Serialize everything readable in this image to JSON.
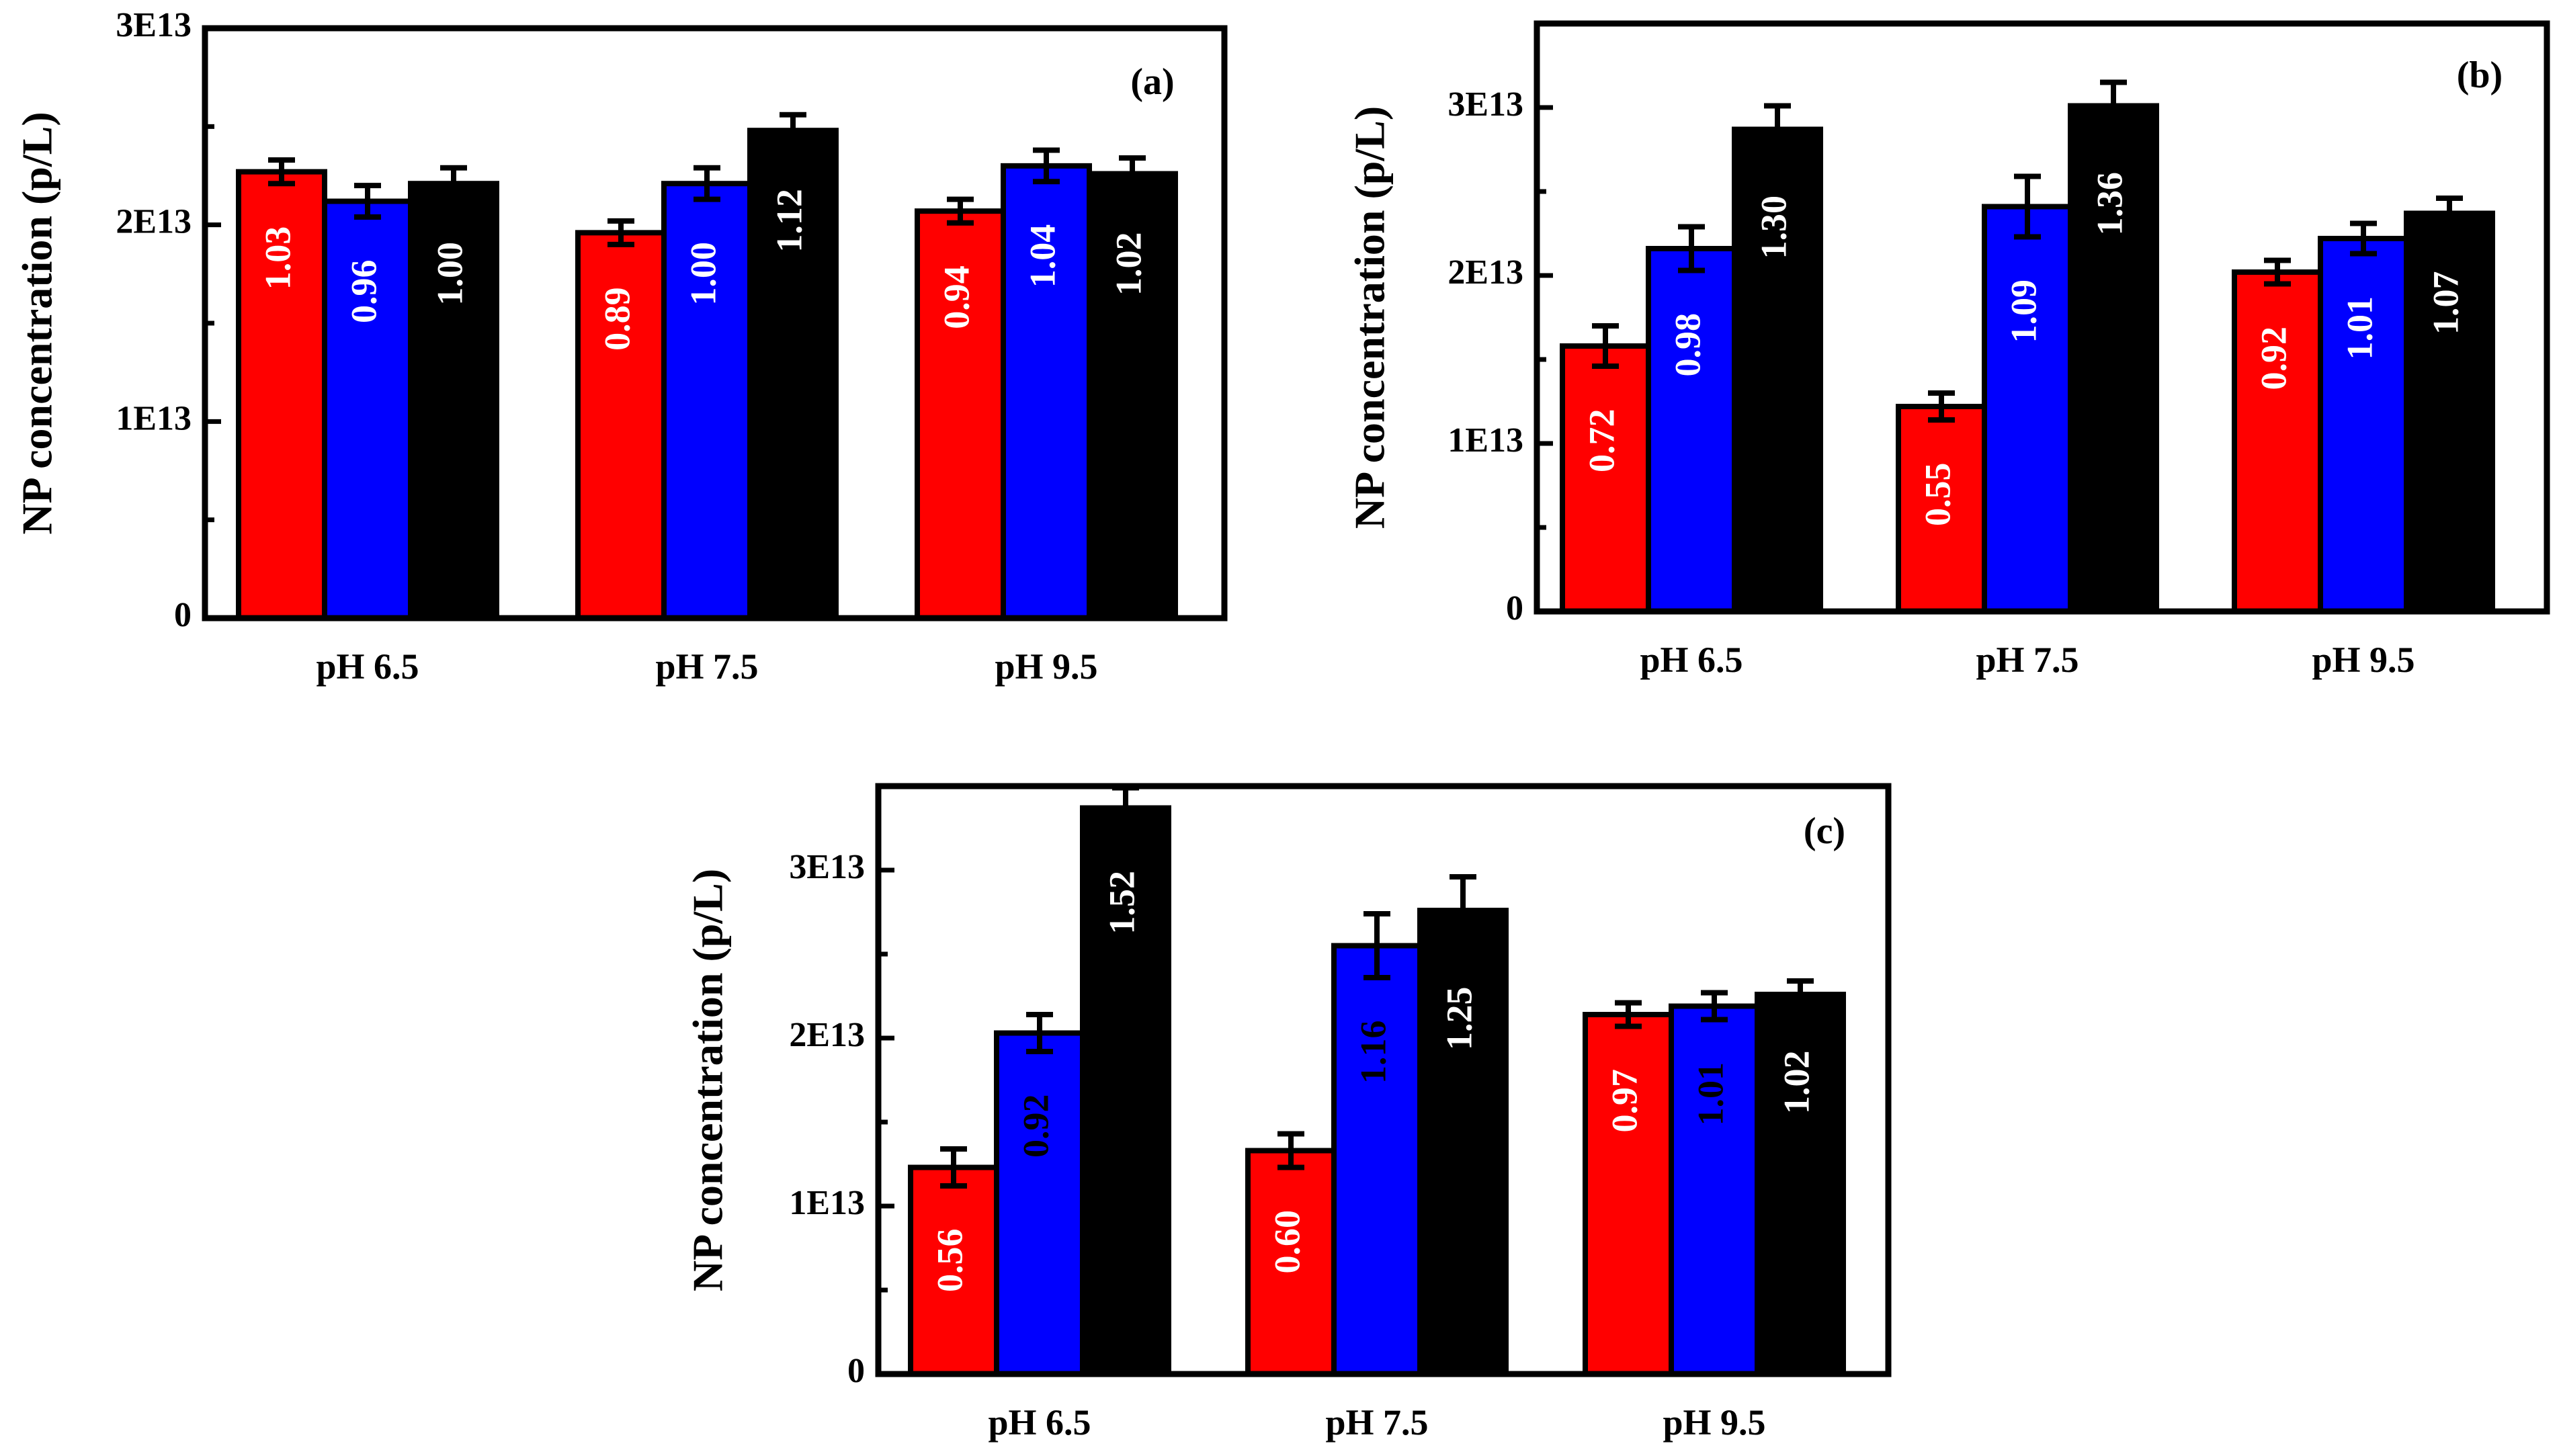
{
  "figure": {
    "colors": {
      "s1": "#ff0000",
      "s2": "#0000ff",
      "s3": "#000000",
      "axis": "#000000",
      "errorbar": "#000000"
    }
  },
  "chart_data": [
    {
      "type": "bar",
      "panel": "(a)",
      "ylabel": "NP concentration (p/L)",
      "xlabel": "",
      "categories": [
        "pH 6.5",
        "pH 7.5",
        "pH 9.5"
      ],
      "ylim": [
        0,
        30000000000000.0
      ],
      "yticks": [
        0,
        10000000000000.0,
        20000000000000.0,
        30000000000000.0
      ],
      "ytick_labels": [
        "0",
        "1E13",
        "2E13",
        "3E13"
      ],
      "series": [
        {
          "name": "red",
          "color": "#ff0000",
          "values": [
            22700000000000.0,
            19600000000000.0,
            20700000000000.0
          ],
          "errors": [
            600000000000.0,
            600000000000.0,
            600000000000.0
          ],
          "labels": [
            "1.03",
            "0.89",
            "0.94"
          ],
          "label_colors": [
            "#ffffff",
            "#ffffff",
            "#ffffff"
          ]
        },
        {
          "name": "blue",
          "color": "#0000ff",
          "values": [
            21200000000000.0,
            22100000000000.0,
            23000000000000.0
          ],
          "errors": [
            800000000000.0,
            800000000000.0,
            800000000000.0
          ],
          "labels": [
            "0.96",
            "1.00",
            "1.04"
          ],
          "label_colors": [
            "#ffffff",
            "#ffffff",
            "#ffffff"
          ]
        },
        {
          "name": "black",
          "color": "#000000",
          "values": [
            22100000000000.0,
            24800000000000.0,
            22600000000000.0
          ],
          "errors": [
            800000000000.0,
            800000000000.0,
            800000000000.0
          ],
          "labels": [
            "1.00",
            "1.12",
            "1.02"
          ],
          "label_colors": [
            "#ffffff",
            "#ffffff",
            "#ffffff"
          ]
        }
      ]
    },
    {
      "type": "bar",
      "panel": "(b)",
      "ylabel": "NP concentration (p/L)",
      "xlabel": "",
      "categories": [
        "pH 6.5",
        "pH 7.5",
        "pH 9.5"
      ],
      "ylim": [
        0,
        35000000000000.0
      ],
      "yticks": [
        0,
        10000000000000.0,
        20000000000000.0,
        30000000000000.0
      ],
      "ytick_labels": [
        "0",
        "1E13",
        "2E13",
        "3E13"
      ],
      "series": [
        {
          "name": "red",
          "color": "#ff0000",
          "values": [
            15800000000000.0,
            12200000000000.0,
            20200000000000.0
          ],
          "errors": [
            1200000000000.0,
            800000000000.0,
            700000000000.0
          ],
          "labels": [
            "0.72",
            "0.55",
            "0.92"
          ],
          "label_colors": [
            "#ffffff",
            "#ffffff",
            "#ffffff"
          ]
        },
        {
          "name": "blue",
          "color": "#0000ff",
          "values": [
            21600000000000.0,
            24100000000000.0,
            22200000000000.0
          ],
          "errors": [
            1300000000000.0,
            1800000000000.0,
            900000000000.0
          ],
          "labels": [
            "0.98",
            "1.09",
            "1.01"
          ],
          "label_colors": [
            "#ffffff",
            "#ffffff",
            "#ffffff"
          ]
        },
        {
          "name": "black",
          "color": "#000000",
          "values": [
            28700000000000.0,
            30100000000000.0,
            23700000000000.0
          ],
          "errors": [
            1400000000000.0,
            1400000000000.0,
            900000000000.0
          ],
          "labels": [
            "1.30",
            "1.36",
            "1.07"
          ],
          "label_colors": [
            "#ffffff",
            "#ffffff",
            "#ffffff"
          ]
        }
      ]
    },
    {
      "type": "bar",
      "panel": "(c)",
      "ylabel": "NP concentration (p/L)",
      "xlabel": "",
      "categories": [
        "pH 6.5",
        "pH 7.5",
        "pH 9.5"
      ],
      "ylim": [
        0,
        35000000000000.0
      ],
      "yticks": [
        0,
        10000000000000.0,
        20000000000000.0,
        30000000000000.0
      ],
      "ytick_labels": [
        "0",
        "1E13",
        "2E13",
        "3E13"
      ],
      "series": [
        {
          "name": "red",
          "color": "#ff0000",
          "values": [
            12300000000000.0,
            13300000000000.0,
            21400000000000.0
          ],
          "errors": [
            1100000000000.0,
            1000000000000.0,
            700000000000.0
          ],
          "labels": [
            "0.56",
            "0.60",
            "0.97"
          ],
          "label_colors": [
            "#ffffff",
            "#ffffff",
            "#ffffff"
          ]
        },
        {
          "name": "blue",
          "color": "#0000ff",
          "values": [
            20300000000000.0,
            25500000000000.0,
            21900000000000.0
          ],
          "errors": [
            1100000000000.0,
            1900000000000.0,
            800000000000.0
          ],
          "labels": [
            "0.92",
            "1.16",
            "1.01"
          ],
          "label_colors": [
            "#000000",
            "#000000",
            "#000000"
          ]
        },
        {
          "name": "black",
          "color": "#000000",
          "values": [
            33700000000000.0,
            27600000000000.0,
            22600000000000.0
          ],
          "errors": [
            1200000000000.0,
            2000000000000.0,
            800000000000.0
          ],
          "labels": [
            "1.52",
            "1.25",
            "1.02"
          ],
          "label_colors": [
            "#ffffff",
            "#ffffff",
            "#ffffff"
          ]
        }
      ]
    }
  ]
}
